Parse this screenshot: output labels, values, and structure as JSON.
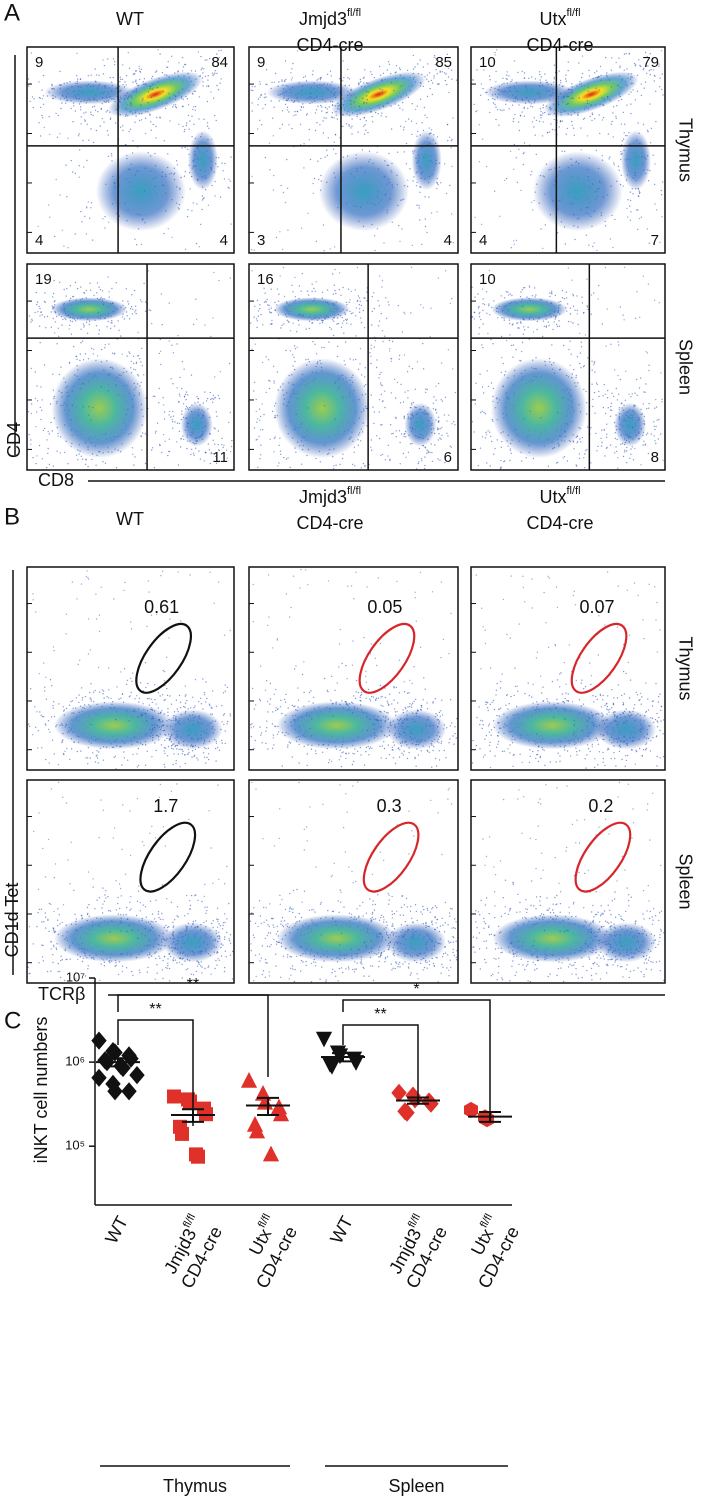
{
  "figure": {
    "columns": [
      {
        "name": "WT"
      },
      {
        "name": "Jmjd3",
        "sup": "fl/fl",
        "line2": "CD4-cre"
      },
      {
        "name": "Utx",
        "sup": "fl/fl",
        "line2": "CD4-cre"
      }
    ],
    "rows": [
      "Thymus",
      "Spleen"
    ],
    "panel_a": {
      "label": "A",
      "y_label": "CD4",
      "x_label": "CD8",
      "plots": [
        [
          {
            "ul": 9,
            "ur": 84,
            "ll": 4,
            "lr": 4
          },
          {
            "ul": 9,
            "ur": 85,
            "ll": 3,
            "lr": 4
          },
          {
            "ul": 10,
            "ur": 79,
            "ll": 4,
            "lr": 7
          }
        ],
        [
          {
            "ul": 19,
            "lr": 11
          },
          {
            "ul": 16,
            "lr": 6
          },
          {
            "ul": 10,
            "lr": 8
          }
        ]
      ]
    },
    "panel_b": {
      "label": "B",
      "y_label": "CD1d Tet",
      "x_label": "TCRβ",
      "gates": [
        [
          0.61,
          0.05,
          0.07
        ],
        [
          1.7,
          0.3,
          0.2
        ]
      ],
      "gate_colors": [
        "#111111",
        "#d7262b",
        "#d7262b"
      ]
    }
  },
  "chart_data": {
    "type": "dot",
    "label": "C",
    "y_label": "iNKT cell numbers",
    "log": true,
    "ylim": [
      20000,
      10000000
    ],
    "yticks": [
      {
        "value": 100000,
        "label": "10⁵"
      },
      {
        "value": 1000000,
        "label": "10⁶"
      },
      {
        "value": 10000000,
        "label": "10⁷"
      }
    ],
    "groups": [
      {
        "name": "WT",
        "marker": "diamond",
        "color": "#111111",
        "values": [
          1800000,
          1350000,
          1300000,
          1200000,
          1100000,
          1050000,
          1000000,
          900000,
          850000,
          700000,
          650000,
          550000,
          450000,
          450000
        ],
        "mean": 1000000,
        "sem": 110000
      },
      {
        "name": "Jmjd3",
        "sup": "fl/fl",
        "line2": "CD4-cre",
        "marker": "square",
        "color": "#e0302a",
        "values": [
          390000,
          360000,
          340000,
          280000,
          240000,
          170000,
          140000,
          80000,
          75000
        ],
        "mean": 235000,
        "sem": 40000
      },
      {
        "name": "Utx",
        "sup": "fl/fl",
        "line2": "CD4-cre",
        "marker": "triangle",
        "color": "#e0302a",
        "values": [
          600000,
          420000,
          330000,
          290000,
          240000,
          180000,
          150000,
          80000
        ],
        "mean": 305000,
        "sem": 70000
      },
      {
        "name": "WT",
        "marker": "triangle-down",
        "color": "#111111",
        "values": [
          1900000,
          1300000,
          1200000,
          1100000,
          1000000,
          950000,
          900000
        ],
        "mean": 1150000,
        "sem": 130000
      },
      {
        "name": "Jmjd3",
        "sup": "fl/fl",
        "line2": "CD4-cre",
        "marker": "diamond",
        "color": "#e0302a",
        "values": [
          430000,
          400000,
          360000,
          340000,
          320000,
          260000,
          250000
        ],
        "mean": 350000,
        "sem": 30000
      },
      {
        "name": "Utx",
        "sup": "fl/fl",
        "line2": "CD4-cre",
        "marker": "hexagon",
        "color": "#e0302a",
        "values": [
          270000,
          220000,
          210000
        ],
        "mean": 225000,
        "sem": 30000
      }
    ],
    "comparisons": [
      "**",
      "**",
      "**",
      "*"
    ],
    "sections": [
      "Thymus",
      "Spleen"
    ]
  }
}
